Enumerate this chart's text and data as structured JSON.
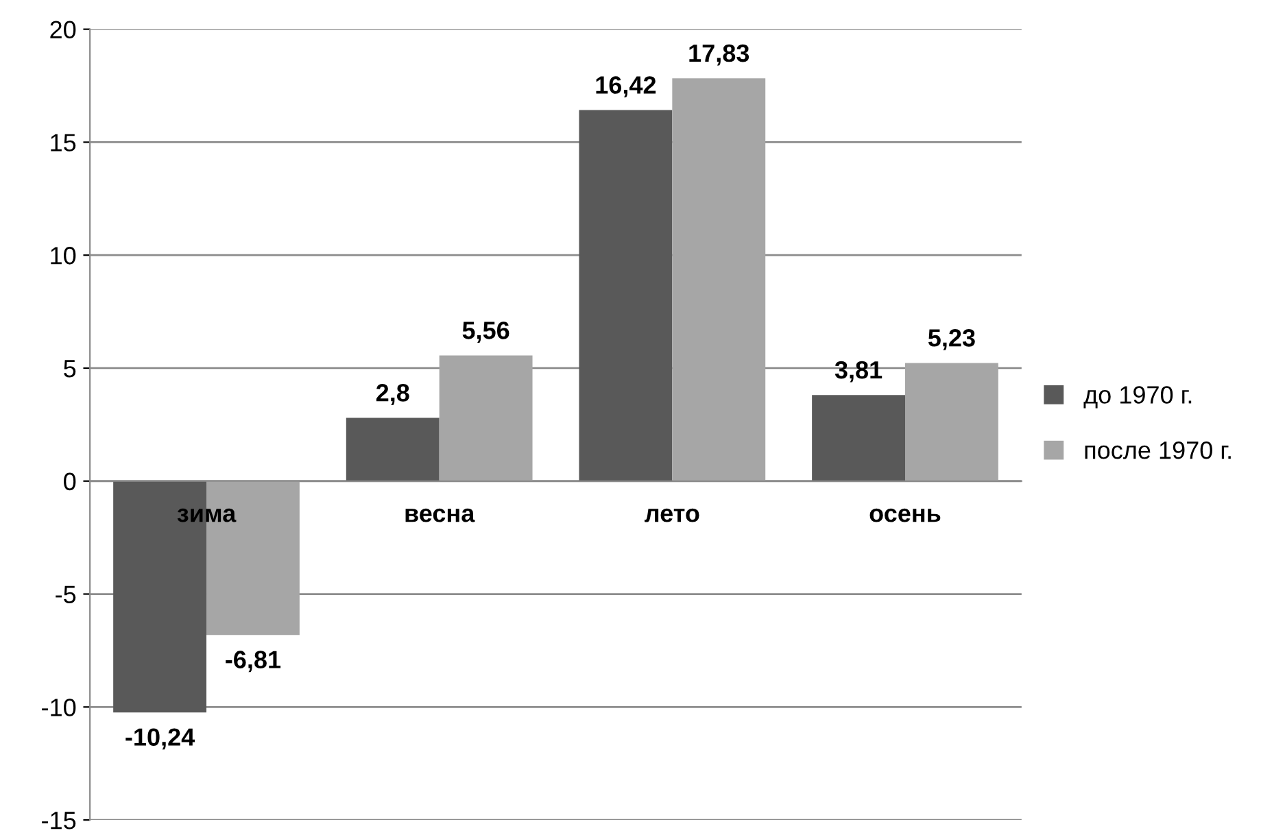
{
  "chart_data": {
    "type": "bar",
    "categories": [
      "зима",
      "весна",
      "лето",
      "осень"
    ],
    "series": [
      {
        "name": "до 1970 г.",
        "color": "#595959",
        "values": [
          -10.24,
          2.8,
          16.42,
          3.81
        ],
        "value_labels": [
          "-10,24",
          "2,8",
          "16,42",
          "3,81"
        ]
      },
      {
        "name": "после 1970 г.",
        "color": "#a6a6a6",
        "values": [
          -6.81,
          5.56,
          17.83,
          5.23
        ],
        "value_labels": [
          "-6,81",
          "5,56",
          "17,83",
          "5,23"
        ]
      }
    ],
    "ylim": [
      -15,
      20
    ],
    "yticks": [
      -15,
      -10,
      -5,
      0,
      5,
      10,
      15,
      20
    ],
    "grid": "y",
    "legend": "right"
  }
}
